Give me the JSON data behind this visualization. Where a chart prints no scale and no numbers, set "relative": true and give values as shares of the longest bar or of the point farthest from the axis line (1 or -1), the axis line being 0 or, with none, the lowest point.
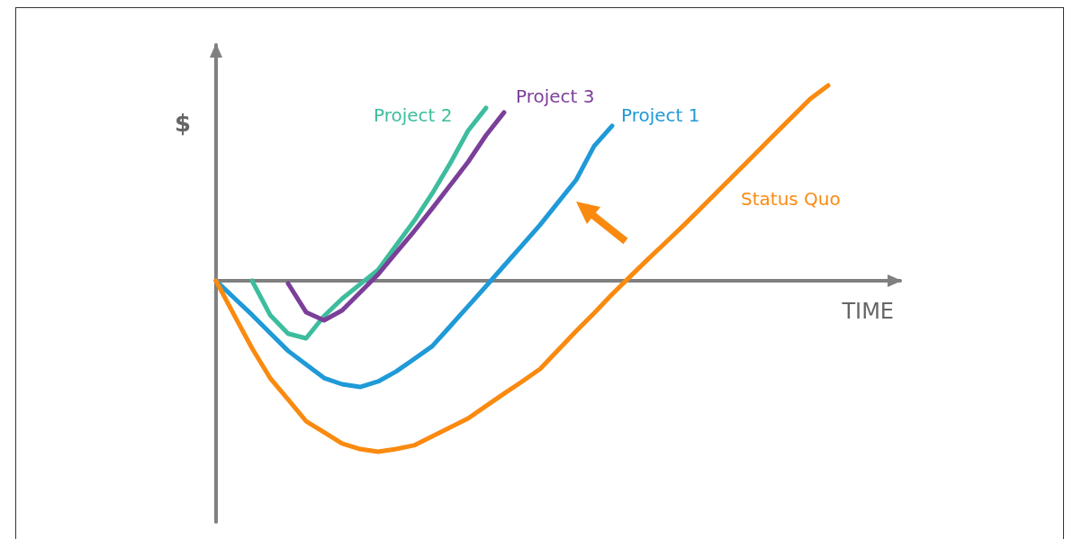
{
  "chart_data": {
    "type": "line",
    "relative": true,
    "xlabel": "TIME",
    "ylabel": "$",
    "grid": false,
    "legend": false,
    "marker": "none",
    "line_style": "solid",
    "categories": [
      null,
      null,
      null,
      null,
      null,
      null,
      null,
      null,
      null,
      null,
      null,
      null,
      null,
      null,
      null,
      null,
      null,
      null,
      null,
      null,
      null,
      null,
      null,
      null,
      null,
      null,
      null,
      null,
      null,
      null,
      null,
      null,
      null,
      null,
      null,
      null,
      null,
      null,
      null
    ],
    "series": [
      {
        "name": "Project 1",
        "color": "#1f9ad7",
        "values": [
          0,
          -0.088,
          -0.175,
          -0.267,
          -0.359,
          -0.429,
          -0.498,
          -0.53,
          -0.544,
          -0.516,
          -0.465,
          -0.401,
          -0.336,
          -0.234,
          -0.131,
          -0.028,
          0.077,
          0.181,
          0.286,
          0.401,
          0.516,
          0.689,
          0.793,
          null,
          null,
          null,
          null,
          null,
          null,
          null,
          null,
          null,
          null,
          null,
          null,
          null,
          null,
          null,
          null
        ]
      },
      {
        "name": "Project 2",
        "color": "#3dbd9d",
        "values": [
          null,
          null,
          0,
          -0.175,
          -0.271,
          -0.295,
          -0.181,
          -0.092,
          -0.018,
          0.055,
          0.181,
          0.306,
          0.446,
          0.6,
          0.768,
          0.885,
          null,
          null,
          null,
          null,
          null,
          null,
          null,
          null,
          null,
          null,
          null,
          null,
          null,
          null,
          null,
          null,
          null,
          null,
          null,
          null,
          null,
          null,
          null
        ]
      },
      {
        "name": "Project 3",
        "color": "#7b3f99",
        "values": [
          null,
          null,
          null,
          null,
          -0.014,
          -0.161,
          -0.203,
          -0.152,
          -0.06,
          0.032,
          0.143,
          0.253,
          0.369,
          0.488,
          0.608,
          0.745,
          0.862,
          null,
          null,
          null,
          null,
          null,
          null,
          null,
          null,
          null,
          null,
          null,
          null,
          null,
          null,
          null,
          null,
          null,
          null,
          null,
          null,
          null,
          null
        ]
      },
      {
        "name": "Status Quo",
        "color": "#fa8a0f",
        "values": [
          0,
          -0.175,
          -0.346,
          -0.498,
          -0.608,
          -0.719,
          -0.776,
          -0.834,
          -0.862,
          -0.876,
          -0.862,
          -0.843,
          -0.797,
          -0.751,
          -0.705,
          -0.641,
          -0.578,
          -0.516,
          -0.452,
          -0.355,
          -0.258,
          -0.166,
          -0.069,
          0.021,
          0.111,
          0.198,
          0.286,
          0.378,
          0.47,
          0.562,
          0.654,
          0.747,
          0.839,
          0.931,
          1,
          null,
          null,
          null,
          null
        ]
      }
    ]
  }
}
